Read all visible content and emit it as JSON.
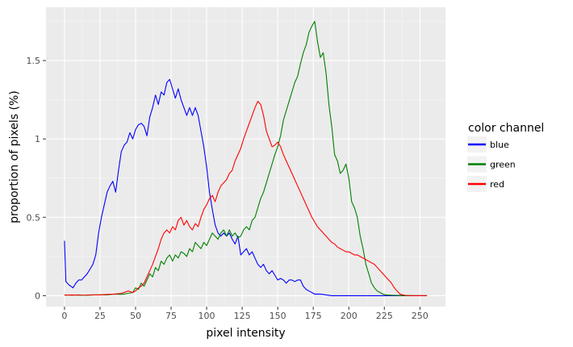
{
  "chart_data": {
    "type": "line",
    "title": "",
    "xlabel": "pixel intensity",
    "ylabel": "proportion of pixels (%)",
    "xlim": [
      -13,
      268
    ],
    "ylim": [
      -0.07,
      1.84
    ],
    "x_ticks": [
      0,
      25,
      50,
      75,
      100,
      125,
      150,
      175,
      200,
      225,
      250
    ],
    "x_tick_labels": [
      "0",
      "25",
      "50",
      "75",
      "100",
      "125",
      "150",
      "175",
      "200",
      "225",
      "250"
    ],
    "y_ticks": [
      0,
      0.5,
      1,
      1.5
    ],
    "y_tick_labels": [
      "0",
      "0.5",
      "1",
      "1.5"
    ],
    "grid": true,
    "legend": {
      "title": "color channel",
      "placement": "right",
      "entries": [
        {
          "label": "blue",
          "color": "#0000ff"
        },
        {
          "label": "green",
          "color": "#008000"
        },
        {
          "label": "red",
          "color": "#ff0000"
        }
      ]
    },
    "series": [
      {
        "name": "blue",
        "color": "#0000ff",
        "points": [
          [
            0,
            0.35
          ],
          [
            1,
            0.09
          ],
          [
            3,
            0.07
          ],
          [
            6,
            0.05
          ],
          [
            8,
            0.08
          ],
          [
            10,
            0.1
          ],
          [
            12,
            0.1
          ],
          [
            14,
            0.12
          ],
          [
            16,
            0.14
          ],
          [
            18,
            0.17
          ],
          [
            20,
            0.2
          ],
          [
            22,
            0.26
          ],
          [
            24,
            0.4
          ],
          [
            26,
            0.5
          ],
          [
            28,
            0.58
          ],
          [
            30,
            0.66
          ],
          [
            32,
            0.7
          ],
          [
            34,
            0.73
          ],
          [
            36,
            0.66
          ],
          [
            38,
            0.8
          ],
          [
            40,
            0.92
          ],
          [
            42,
            0.96
          ],
          [
            44,
            0.98
          ],
          [
            46,
            1.04
          ],
          [
            48,
            1.0
          ],
          [
            50,
            1.06
          ],
          [
            52,
            1.09
          ],
          [
            54,
            1.1
          ],
          [
            56,
            1.08
          ],
          [
            58,
            1.02
          ],
          [
            60,
            1.14
          ],
          [
            62,
            1.2
          ],
          [
            64,
            1.28
          ],
          [
            66,
            1.22
          ],
          [
            68,
            1.3
          ],
          [
            70,
            1.28
          ],
          [
            72,
            1.36
          ],
          [
            74,
            1.38
          ],
          [
            76,
            1.32
          ],
          [
            78,
            1.26
          ],
          [
            80,
            1.32
          ],
          [
            82,
            1.25
          ],
          [
            84,
            1.2
          ],
          [
            86,
            1.15
          ],
          [
            88,
            1.2
          ],
          [
            90,
            1.15
          ],
          [
            92,
            1.2
          ],
          [
            94,
            1.15
          ],
          [
            96,
            1.05
          ],
          [
            98,
            0.95
          ],
          [
            100,
            0.82
          ],
          [
            102,
            0.66
          ],
          [
            104,
            0.55
          ],
          [
            106,
            0.45
          ],
          [
            108,
            0.4
          ],
          [
            110,
            0.38
          ],
          [
            112,
            0.4
          ],
          [
            114,
            0.38
          ],
          [
            116,
            0.4
          ],
          [
            118,
            0.36
          ],
          [
            120,
            0.33
          ],
          [
            122,
            0.38
          ],
          [
            124,
            0.26
          ],
          [
            126,
            0.28
          ],
          [
            128,
            0.3
          ],
          [
            130,
            0.26
          ],
          [
            132,
            0.28
          ],
          [
            134,
            0.24
          ],
          [
            136,
            0.2
          ],
          [
            138,
            0.18
          ],
          [
            140,
            0.2
          ],
          [
            142,
            0.16
          ],
          [
            144,
            0.14
          ],
          [
            146,
            0.16
          ],
          [
            148,
            0.13
          ],
          [
            150,
            0.1
          ],
          [
            152,
            0.11
          ],
          [
            154,
            0.1
          ],
          [
            156,
            0.08
          ],
          [
            158,
            0.1
          ],
          [
            160,
            0.1
          ],
          [
            162,
            0.09
          ],
          [
            164,
            0.1
          ],
          [
            166,
            0.1
          ],
          [
            168,
            0.06
          ],
          [
            170,
            0.04
          ],
          [
            172,
            0.03
          ],
          [
            174,
            0.02
          ],
          [
            176,
            0.01
          ],
          [
            180,
            0.01
          ],
          [
            184,
            0.005
          ],
          [
            188,
            0.0
          ],
          [
            200,
            0.0
          ],
          [
            210,
            0.0
          ],
          [
            220,
            0.0
          ],
          [
            230,
            0.0
          ],
          [
            240,
            0.0
          ],
          [
            250,
            0.0
          ],
          [
            255,
            0.0
          ]
        ]
      },
      {
        "name": "green",
        "color": "#008000",
        "points": [
          [
            0,
            0.005
          ],
          [
            5,
            0.003
          ],
          [
            10,
            0.005
          ],
          [
            15,
            0.002
          ],
          [
            20,
            0.004
          ],
          [
            25,
            0.006
          ],
          [
            30,
            0.005
          ],
          [
            35,
            0.01
          ],
          [
            40,
            0.008
          ],
          [
            45,
            0.015
          ],
          [
            48,
            0.02
          ],
          [
            50,
            0.05
          ],
          [
            52,
            0.04
          ],
          [
            54,
            0.08
          ],
          [
            56,
            0.06
          ],
          [
            58,
            0.1
          ],
          [
            60,
            0.14
          ],
          [
            62,
            0.12
          ],
          [
            64,
            0.18
          ],
          [
            66,
            0.16
          ],
          [
            68,
            0.22
          ],
          [
            70,
            0.2
          ],
          [
            72,
            0.24
          ],
          [
            74,
            0.26
          ],
          [
            76,
            0.22
          ],
          [
            78,
            0.26
          ],
          [
            80,
            0.24
          ],
          [
            82,
            0.28
          ],
          [
            84,
            0.27
          ],
          [
            86,
            0.25
          ],
          [
            88,
            0.3
          ],
          [
            90,
            0.28
          ],
          [
            92,
            0.34
          ],
          [
            94,
            0.32
          ],
          [
            96,
            0.3
          ],
          [
            98,
            0.34
          ],
          [
            100,
            0.32
          ],
          [
            102,
            0.36
          ],
          [
            104,
            0.4
          ],
          [
            106,
            0.38
          ],
          [
            108,
            0.36
          ],
          [
            110,
            0.4
          ],
          [
            112,
            0.42
          ],
          [
            114,
            0.38
          ],
          [
            116,
            0.42
          ],
          [
            118,
            0.38
          ],
          [
            120,
            0.4
          ],
          [
            122,
            0.37
          ],
          [
            124,
            0.38
          ],
          [
            126,
            0.42
          ],
          [
            128,
            0.44
          ],
          [
            130,
            0.42
          ],
          [
            132,
            0.48
          ],
          [
            134,
            0.5
          ],
          [
            136,
            0.56
          ],
          [
            138,
            0.62
          ],
          [
            140,
            0.66
          ],
          [
            142,
            0.72
          ],
          [
            144,
            0.78
          ],
          [
            146,
            0.84
          ],
          [
            148,
            0.9
          ],
          [
            150,
            0.95
          ],
          [
            152,
            1.02
          ],
          [
            154,
            1.12
          ],
          [
            156,
            1.18
          ],
          [
            158,
            1.24
          ],
          [
            160,
            1.3
          ],
          [
            162,
            1.36
          ],
          [
            164,
            1.4
          ],
          [
            166,
            1.48
          ],
          [
            168,
            1.55
          ],
          [
            170,
            1.6
          ],
          [
            172,
            1.68
          ],
          [
            174,
            1.72
          ],
          [
            176,
            1.75
          ],
          [
            178,
            1.62
          ],
          [
            180,
            1.52
          ],
          [
            182,
            1.55
          ],
          [
            184,
            1.42
          ],
          [
            186,
            1.22
          ],
          [
            188,
            1.08
          ],
          [
            190,
            0.9
          ],
          [
            192,
            0.86
          ],
          [
            194,
            0.78
          ],
          [
            196,
            0.8
          ],
          [
            198,
            0.84
          ],
          [
            200,
            0.75
          ],
          [
            202,
            0.6
          ],
          [
            204,
            0.56
          ],
          [
            206,
            0.5
          ],
          [
            208,
            0.38
          ],
          [
            210,
            0.3
          ],
          [
            212,
            0.2
          ],
          [
            214,
            0.14
          ],
          [
            216,
            0.08
          ],
          [
            218,
            0.05
          ],
          [
            220,
            0.03
          ],
          [
            222,
            0.02
          ],
          [
            224,
            0.01
          ],
          [
            226,
            0.005
          ],
          [
            230,
            0.003
          ],
          [
            240,
            0.0
          ],
          [
            250,
            0.0
          ],
          [
            255,
            0.0
          ]
        ]
      },
      {
        "name": "red",
        "color": "#ff0000",
        "points": [
          [
            0,
            0.003
          ],
          [
            5,
            0.005
          ],
          [
            10,
            0.003
          ],
          [
            15,
            0.004
          ],
          [
            20,
            0.006
          ],
          [
            25,
            0.005
          ],
          [
            30,
            0.008
          ],
          [
            35,
            0.01
          ],
          [
            40,
            0.015
          ],
          [
            45,
            0.03
          ],
          [
            48,
            0.02
          ],
          [
            50,
            0.03
          ],
          [
            52,
            0.05
          ],
          [
            54,
            0.06
          ],
          [
            56,
            0.08
          ],
          [
            58,
            0.12
          ],
          [
            60,
            0.16
          ],
          [
            62,
            0.2
          ],
          [
            64,
            0.25
          ],
          [
            66,
            0.3
          ],
          [
            68,
            0.36
          ],
          [
            70,
            0.4
          ],
          [
            72,
            0.42
          ],
          [
            74,
            0.4
          ],
          [
            76,
            0.44
          ],
          [
            78,
            0.42
          ],
          [
            80,
            0.48
          ],
          [
            82,
            0.5
          ],
          [
            84,
            0.45
          ],
          [
            86,
            0.48
          ],
          [
            88,
            0.44
          ],
          [
            90,
            0.42
          ],
          [
            92,
            0.46
          ],
          [
            94,
            0.44
          ],
          [
            96,
            0.5
          ],
          [
            98,
            0.55
          ],
          [
            100,
            0.58
          ],
          [
            102,
            0.62
          ],
          [
            104,
            0.64
          ],
          [
            106,
            0.6
          ],
          [
            108,
            0.66
          ],
          [
            110,
            0.7
          ],
          [
            112,
            0.72
          ],
          [
            114,
            0.74
          ],
          [
            116,
            0.78
          ],
          [
            118,
            0.8
          ],
          [
            120,
            0.86
          ],
          [
            122,
            0.9
          ],
          [
            124,
            0.94
          ],
          [
            126,
            1.0
          ],
          [
            128,
            1.05
          ],
          [
            130,
            1.1
          ],
          [
            132,
            1.15
          ],
          [
            134,
            1.2
          ],
          [
            136,
            1.24
          ],
          [
            138,
            1.22
          ],
          [
            140,
            1.15
          ],
          [
            142,
            1.05
          ],
          [
            144,
            1.0
          ],
          [
            146,
            0.95
          ],
          [
            148,
            0.96
          ],
          [
            150,
            0.98
          ],
          [
            152,
            0.95
          ],
          [
            154,
            0.9
          ],
          [
            156,
            0.86
          ],
          [
            158,
            0.82
          ],
          [
            160,
            0.78
          ],
          [
            162,
            0.74
          ],
          [
            164,
            0.7
          ],
          [
            166,
            0.66
          ],
          [
            168,
            0.62
          ],
          [
            170,
            0.58
          ],
          [
            172,
            0.54
          ],
          [
            174,
            0.5
          ],
          [
            176,
            0.47
          ],
          [
            178,
            0.44
          ],
          [
            180,
            0.42
          ],
          [
            182,
            0.4
          ],
          [
            184,
            0.38
          ],
          [
            186,
            0.36
          ],
          [
            188,
            0.34
          ],
          [
            190,
            0.33
          ],
          [
            192,
            0.31
          ],
          [
            194,
            0.3
          ],
          [
            196,
            0.29
          ],
          [
            198,
            0.28
          ],
          [
            200,
            0.28
          ],
          [
            202,
            0.27
          ],
          [
            204,
            0.26
          ],
          [
            206,
            0.26
          ],
          [
            208,
            0.25
          ],
          [
            210,
            0.24
          ],
          [
            212,
            0.23
          ],
          [
            214,
            0.22
          ],
          [
            216,
            0.21
          ],
          [
            218,
            0.2
          ],
          [
            220,
            0.18
          ],
          [
            222,
            0.16
          ],
          [
            224,
            0.14
          ],
          [
            226,
            0.12
          ],
          [
            228,
            0.1
          ],
          [
            230,
            0.08
          ],
          [
            232,
            0.05
          ],
          [
            234,
            0.03
          ],
          [
            236,
            0.01
          ],
          [
            238,
            0.005
          ],
          [
            240,
            0.002
          ],
          [
            245,
            0.0
          ],
          [
            250,
            0.0
          ],
          [
            255,
            0.0
          ]
        ]
      }
    ]
  }
}
